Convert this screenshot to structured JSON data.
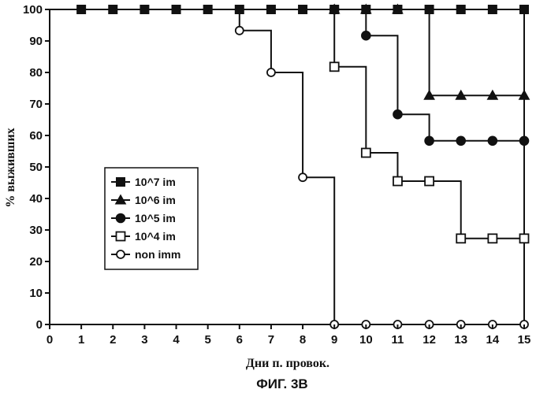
{
  "chart_data": {
    "type": "line",
    "step": true,
    "caption": "ФИГ. 3В",
    "xlabel": "Дни п. провок.",
    "ylabel": "% выживших",
    "xlim": [
      0,
      15
    ],
    "ylim": [
      0,
      100
    ],
    "xticks": [
      0,
      1,
      2,
      3,
      4,
      5,
      6,
      7,
      8,
      9,
      10,
      11,
      12,
      13,
      14,
      15
    ],
    "yticks": [
      0,
      10,
      20,
      30,
      40,
      50,
      60,
      70,
      80,
      90,
      100
    ],
    "legend_position": "left-middle",
    "series": [
      {
        "name": "10^7 im",
        "marker": "filled-square",
        "points": [
          [
            1,
            100
          ],
          [
            2,
            100
          ],
          [
            3,
            100
          ],
          [
            4,
            100
          ],
          [
            5,
            100
          ],
          [
            6,
            100
          ],
          [
            7,
            100
          ],
          [
            8,
            100
          ],
          [
            9,
            100
          ],
          [
            10,
            100
          ],
          [
            11,
            100
          ],
          [
            12,
            100
          ],
          [
            13,
            100
          ],
          [
            14,
            100
          ],
          [
            15,
            100
          ]
        ]
      },
      {
        "name": "10^6 im",
        "marker": "filled-triangle",
        "points": [
          [
            9,
            100
          ],
          [
            10,
            100
          ],
          [
            11,
            100
          ],
          [
            12,
            72.7
          ],
          [
            13,
            72.7
          ],
          [
            14,
            72.7
          ],
          [
            15,
            72.7
          ]
        ]
      },
      {
        "name": "10^5 im",
        "marker": "filled-circle",
        "points": [
          [
            9,
            100
          ],
          [
            10,
            91.7
          ],
          [
            11,
            66.7
          ],
          [
            12,
            58.3
          ],
          [
            13,
            58.3
          ],
          [
            14,
            58.3
          ],
          [
            15,
            58.3
          ]
        ]
      },
      {
        "name": "10^4 im",
        "marker": "open-square",
        "points": [
          [
            9,
            81.8
          ],
          [
            10,
            54.5
          ],
          [
            11,
            45.5
          ],
          [
            12,
            45.5
          ],
          [
            13,
            27.3
          ],
          [
            14,
            27.3
          ],
          [
            15,
            27.3
          ]
        ]
      },
      {
        "name": "non imm",
        "marker": "open-circle",
        "points": [
          [
            6,
            93.3
          ],
          [
            7,
            80
          ],
          [
            8,
            46.7
          ],
          [
            9,
            0
          ],
          [
            10,
            0
          ],
          [
            11,
            0
          ],
          [
            12,
            0
          ],
          [
            13,
            0
          ],
          [
            14,
            0
          ],
          [
            15,
            0
          ]
        ]
      }
    ]
  }
}
